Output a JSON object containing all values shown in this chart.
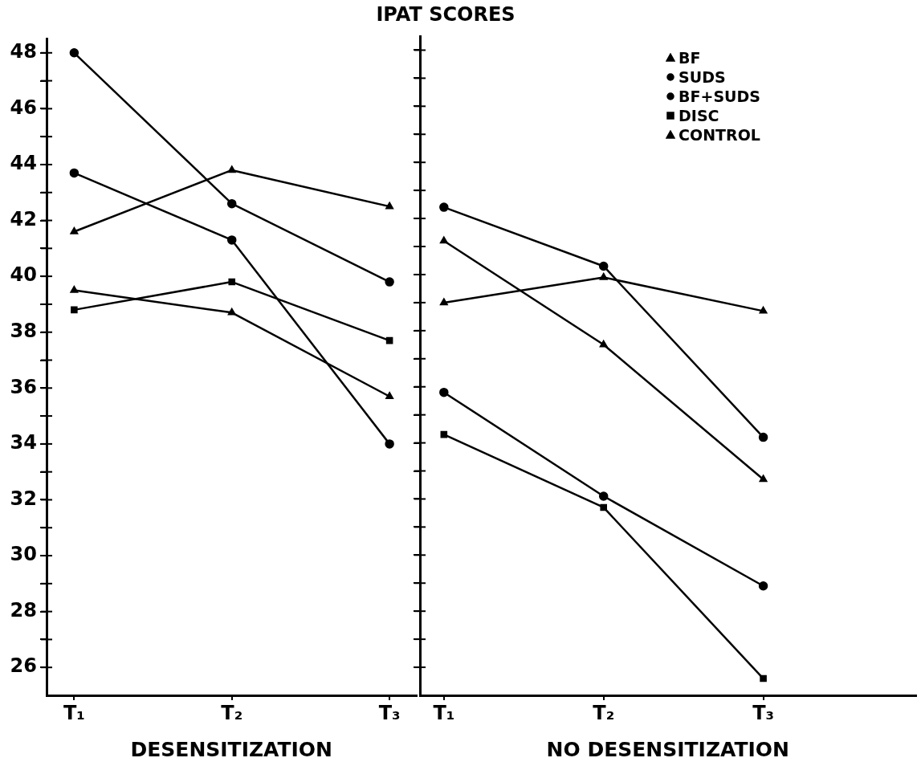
{
  "chart_data": [
    {
      "type": "line",
      "title": "IPAT SCORES",
      "xlabel": "DESENSITIZATION",
      "categories": [
        "T₁",
        "T₂",
        "T₃"
      ],
      "ylim": [
        25,
        48.5
      ],
      "yticks": [
        26,
        {
          "value": 27,
          "label": null
        },
        28,
        {
          "value": 29,
          "label": null
        },
        30,
        {
          "value": 31,
          "label": null
        },
        32,
        {
          "value": 33,
          "label": null
        },
        34,
        {
          "value": 35,
          "label": null
        },
        36,
        {
          "value": 37,
          "label": null
        },
        38,
        {
          "value": 39,
          "label": null
        },
        40,
        {
          "value": 41,
          "label": null
        },
        42,
        {
          "value": 43,
          "label": null
        },
        44,
        {
          "value": 45,
          "label": null
        },
        46,
        {
          "value": 47,
          "label": null
        },
        48
      ],
      "grid": false,
      "legend": false,
      "line_style": "solid",
      "series": [
        {
          "color": "#000000",
          "marker": "triangle",
          "values": [
            39.5,
            38.7,
            35.7
          ]
        },
        {
          "color": "#000000",
          "marker": "circle",
          "values": [
            43.7,
            41.3,
            34.0
          ]
        },
        {
          "color": "#000000",
          "marker": "circle",
          "values": [
            48,
            42.6,
            39.8
          ]
        },
        {
          "color": "#000000",
          "marker": "square",
          "values": [
            38.8,
            39.8,
            37.7
          ]
        },
        {
          "color": "#000000",
          "marker": "triangle",
          "values": [
            41.6,
            43.8,
            42.5
          ]
        }
      ]
    },
    {
      "type": "line",
      "xlabel": "NO DESENSITIZATION",
      "categories": [
        "T₁",
        "T₂",
        "T₃"
      ],
      "ylim": [
        25,
        48.5
      ],
      "tick_labels": "x",
      "yticks": [
        {
          "value": 26,
          "label": null
        },
        {
          "value": 27,
          "label": null
        },
        {
          "value": 28,
          "label": null
        },
        {
          "value": 29,
          "label": null
        },
        {
          "value": 30,
          "label": null
        },
        {
          "value": 31,
          "label": null
        },
        {
          "value": 32,
          "label": null
        },
        {
          "value": 33,
          "label": null
        },
        {
          "value": 34,
          "label": null
        },
        {
          "value": 35,
          "label": null
        },
        {
          "value": 36,
          "label": null
        },
        {
          "value": 37,
          "label": null
        },
        {
          "value": 38,
          "label": null
        },
        {
          "value": 39,
          "label": null
        },
        {
          "value": 40,
          "label": null
        },
        {
          "value": 41,
          "label": null
        },
        {
          "value": 42,
          "label": null
        },
        {
          "value": 43,
          "label": null
        },
        {
          "value": 44,
          "label": null
        },
        {
          "value": 45,
          "label": null
        },
        {
          "value": 46,
          "label": null
        },
        {
          "value": 47,
          "label": null
        },
        {
          "value": 48,
          "label": null
        }
      ],
      "grid": false,
      "legend": "top right",
      "line_style": "solid",
      "series": [
        {
          "name": "BF",
          "color": "#000000",
          "marker": "triangle",
          "values": [
            41.2,
            37.5,
            32.7
          ]
        },
        {
          "name": "SUDS",
          "color": "#000000",
          "marker": "circle",
          "values": [
            35.8,
            32.1,
            28.9
          ]
        },
        {
          "name": "BF+SUDS",
          "color": "#000000",
          "marker": "circle",
          "values": [
            42.4,
            40.3,
            34.2
          ]
        },
        {
          "name": "DISC",
          "color": "#000000",
          "marker": "square",
          "values": [
            34.3,
            31.7,
            25.6
          ]
        },
        {
          "name": "CONTROL",
          "color": "#000000",
          "marker": "triangle",
          "values": [
            39.0,
            39.9,
            38.7
          ]
        }
      ]
    }
  ]
}
